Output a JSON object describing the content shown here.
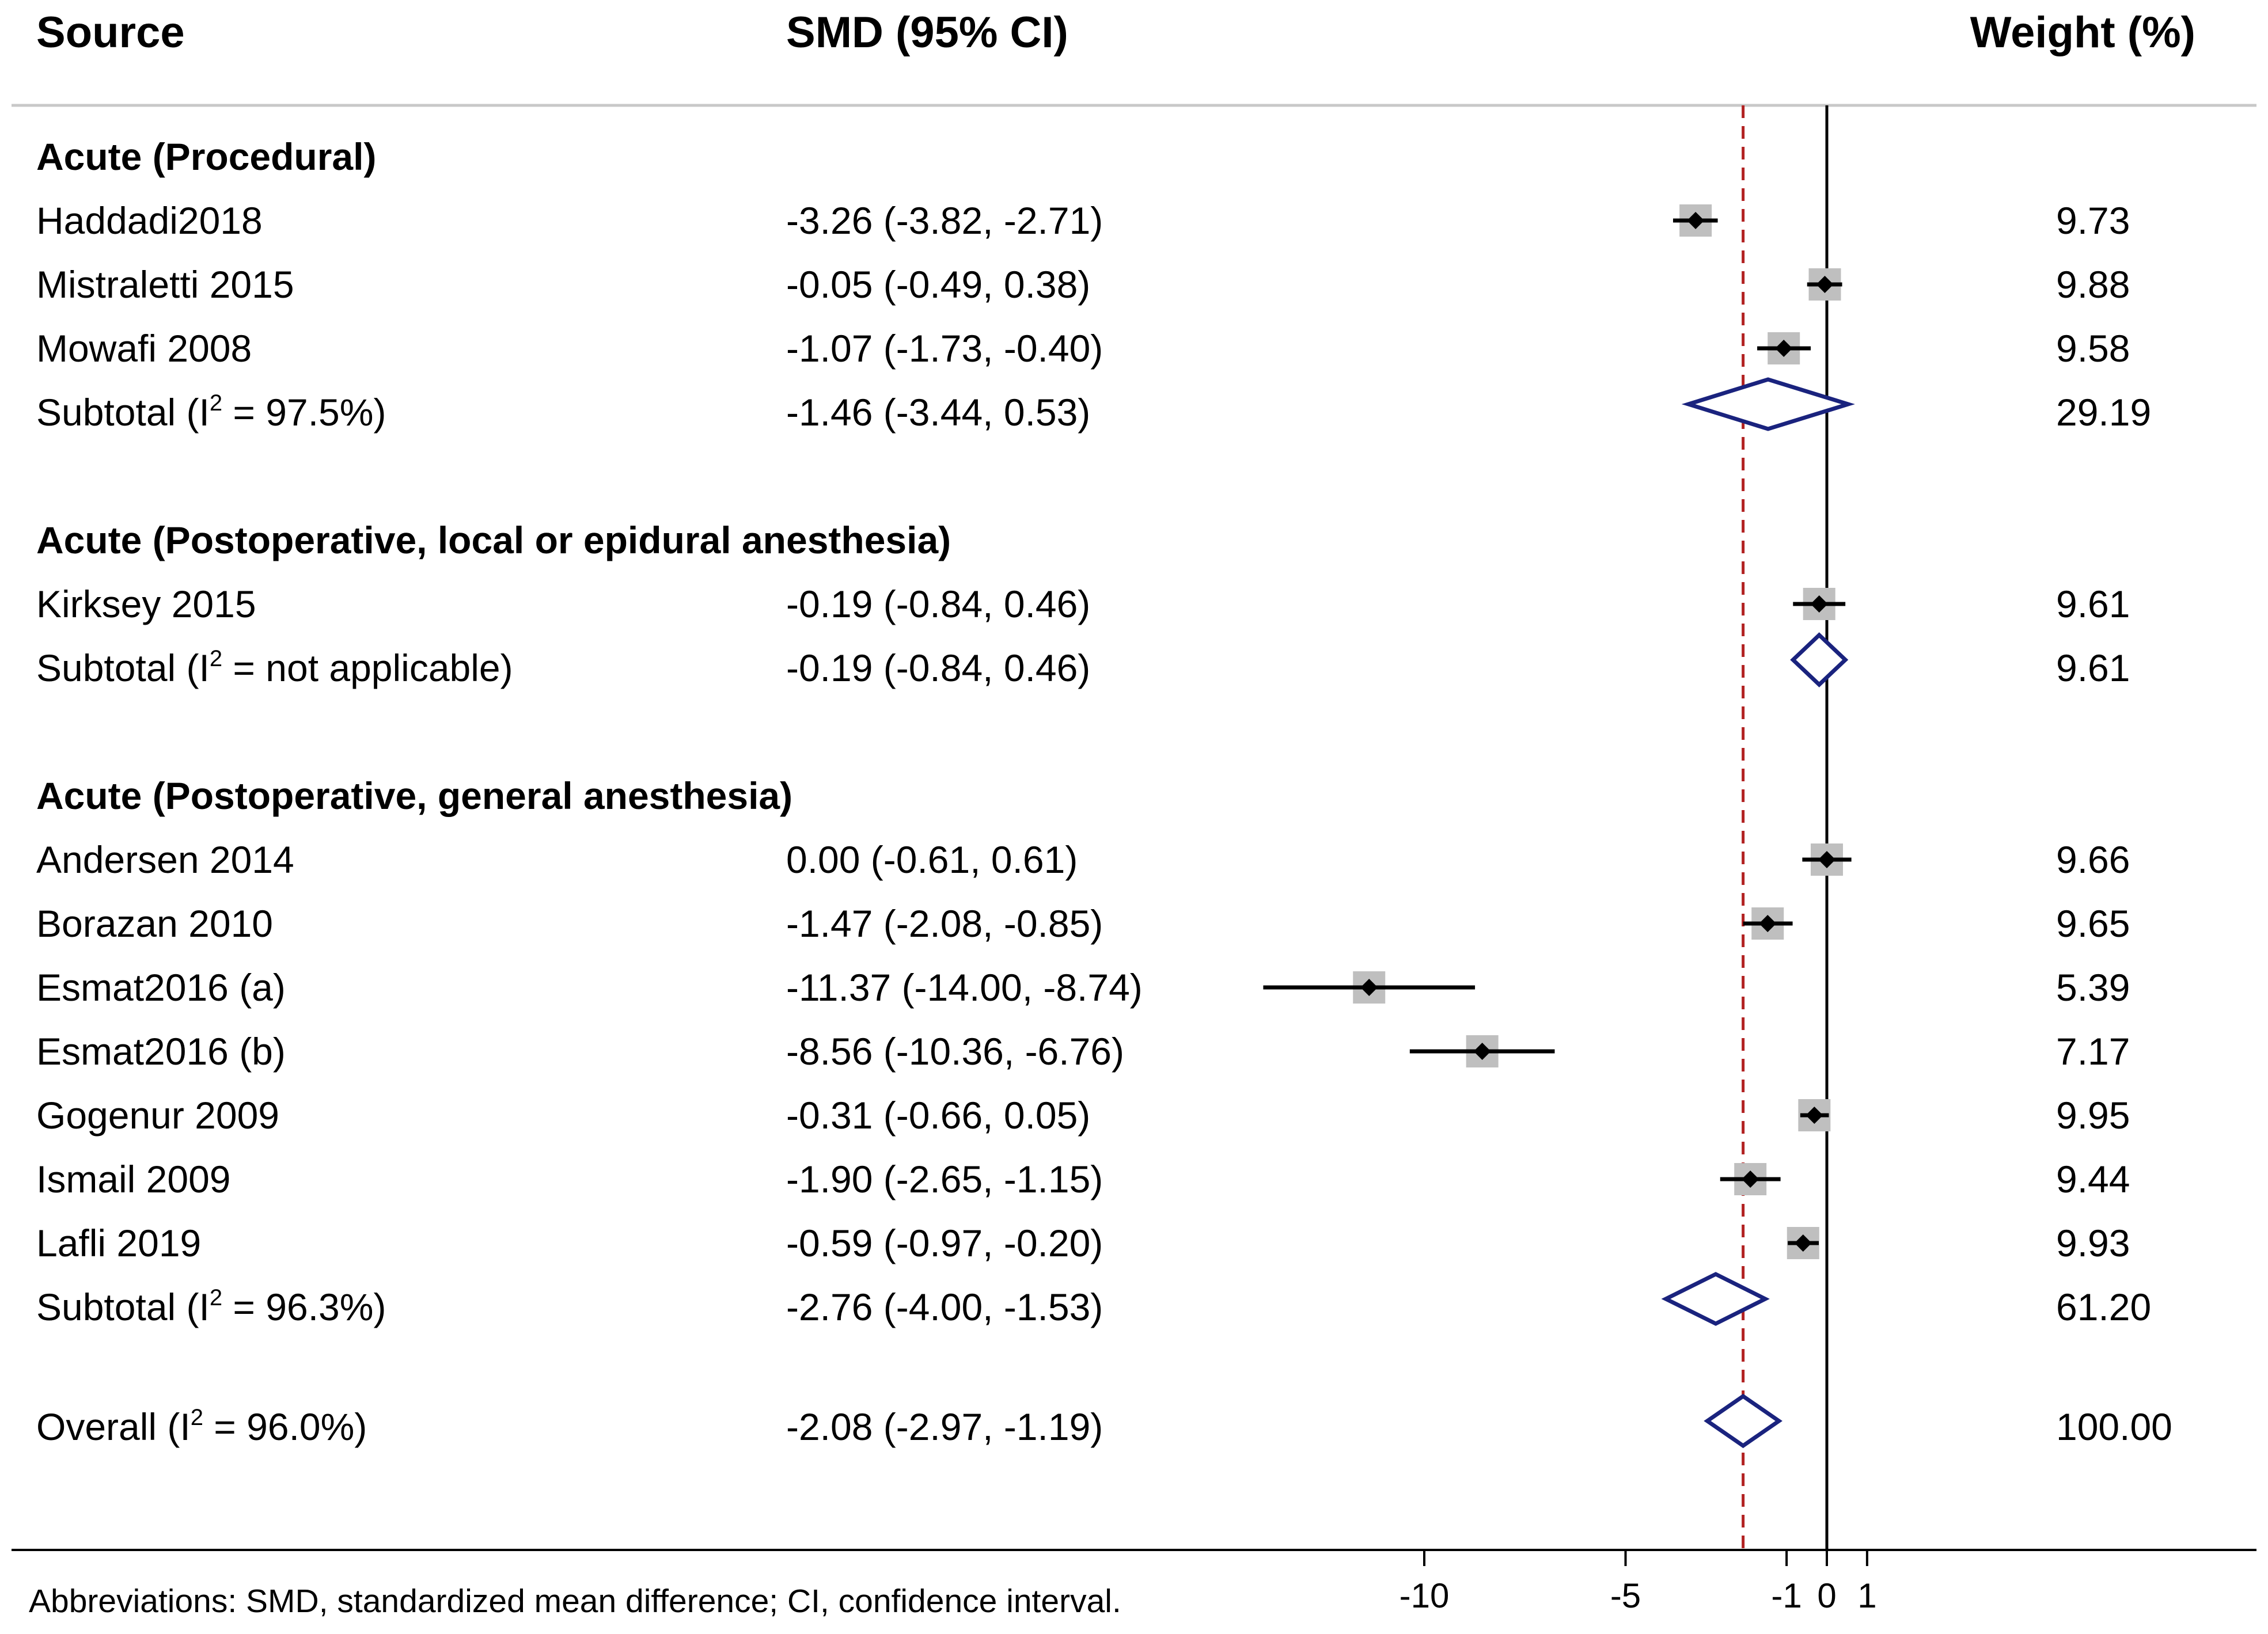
{
  "chart_data": {
    "type": "forest",
    "headers": {
      "source": "Source",
      "estimate": "SMD (95% CI)",
      "weight": "Weight (%)"
    },
    "groups": [
      {
        "title": "Acute (Procedural)",
        "studies": [
          {
            "source": "Haddadi2018",
            "ci_text": "-3.26 (-3.82, -2.71)",
            "smd": -3.26,
            "lo": -3.82,
            "hi": -2.71,
            "weight": 9.73,
            "weight_text": "9.73"
          },
          {
            "source": "Mistraletti 2015",
            "ci_text": "-0.05 (-0.49, 0.38)",
            "smd": -0.05,
            "lo": -0.49,
            "hi": 0.38,
            "weight": 9.88,
            "weight_text": "9.88"
          },
          {
            "source": "Mowafi 2008",
            "ci_text": "-1.07 (-1.73, -0.40)",
            "smd": -1.07,
            "lo": -1.73,
            "hi": -0.4,
            "weight": 9.58,
            "weight_text": "9.58"
          }
        ],
        "subtotal": {
          "label": "Subtotal",
          "i2_prefix": "(I",
          "i2_sup": "2",
          "i2_value": " = 97.5%)",
          "ci_text": "-1.46 (-3.44, 0.53)",
          "smd": -1.46,
          "lo": -3.44,
          "hi": 0.53,
          "weight_text": "29.19"
        }
      },
      {
        "title": "Acute (Postoperative, local or epidural anesthesia)",
        "studies": [
          {
            "source": "Kirksey 2015",
            "ci_text": "-0.19 (-0.84, 0.46)",
            "smd": -0.19,
            "lo": -0.84,
            "hi": 0.46,
            "weight": 9.61,
            "weight_text": "9.61"
          }
        ],
        "subtotal": {
          "label": "Subtotal",
          "i2_prefix": "(I",
          "i2_sup": "2",
          "i2_value": " = not applicable)",
          "ci_text": "-0.19 (-0.84, 0.46)",
          "smd": -0.19,
          "lo": -0.84,
          "hi": 0.46,
          "weight_text": "9.61"
        }
      },
      {
        "title": "Acute (Postoperative, general anesthesia)",
        "studies": [
          {
            "source": "Andersen 2014",
            "ci_text": "0.00 (-0.61, 0.61)",
            "smd": 0.0,
            "lo": -0.61,
            "hi": 0.61,
            "weight": 9.66,
            "weight_text": "9.66"
          },
          {
            "source": "Borazan 2010",
            "ci_text": "-1.47 (-2.08, -0.85)",
            "smd": -1.47,
            "lo": -2.08,
            "hi": -0.85,
            "weight": 9.65,
            "weight_text": "9.65"
          },
          {
            "source": "Esmat2016 (a)",
            "ci_text": "-11.37 (-14.00, -8.74)",
            "smd": -11.37,
            "lo": -14.0,
            "hi": -8.74,
            "weight": 5.39,
            "weight_text": "5.39"
          },
          {
            "source": "Esmat2016 (b)",
            "ci_text": "-8.56 (-10.36, -6.76)",
            "smd": -8.56,
            "lo": -10.36,
            "hi": -6.76,
            "weight": 7.17,
            "weight_text": "7.17"
          },
          {
            "source": "Gogenur 2009",
            "ci_text": "-0.31 (-0.66, 0.05)",
            "smd": -0.31,
            "lo": -0.66,
            "hi": 0.05,
            "weight": 9.95,
            "weight_text": "9.95"
          },
          {
            "source": "Ismail 2009",
            "ci_text": "-1.90 (-2.65, -1.15)",
            "smd": -1.9,
            "lo": -2.65,
            "hi": -1.15,
            "weight": 9.44,
            "weight_text": "9.44"
          },
          {
            "source": "Lafli 2019",
            "ci_text": "-0.59 (-0.97, -0.20)",
            "smd": -0.59,
            "lo": -0.97,
            "hi": -0.2,
            "weight": 9.93,
            "weight_text": "9.93"
          }
        ],
        "subtotal": {
          "label": "Subtotal",
          "i2_prefix": "(I",
          "i2_sup": "2",
          "i2_value": " = 96.3%)",
          "ci_text": "-2.76 (-4.00, -1.53)",
          "smd": -2.76,
          "lo": -4.0,
          "hi": -1.53,
          "weight_text": "61.20"
        }
      }
    ],
    "overall": {
      "label": "Overall",
      "i2_prefix": "(I",
      "i2_sup": "2",
      "i2_value": " = 96.0%)",
      "ci_text": "-2.08 (-2.97, -1.19)",
      "smd": -2.08,
      "lo": -2.97,
      "hi": -1.19,
      "weight_text": "100.00"
    },
    "x_axis": {
      "ticks": [
        -10,
        -5,
        -1,
        0,
        1
      ],
      "tick_labels": [
        "-10",
        "-5",
        "-1",
        "0",
        "1"
      ],
      "null_value": 0,
      "overall_reference": -2.08
    },
    "footnote": "Abbreviations: SMD, standardized mean difference; CI, confidence interval.",
    "colors": {
      "text": "#000000",
      "marker_box": "#bfbfbf",
      "diamond": "#1a237e",
      "reference_line": "#b22222",
      "axis": "#000000",
      "separator": "#c8c8c8"
    }
  }
}
